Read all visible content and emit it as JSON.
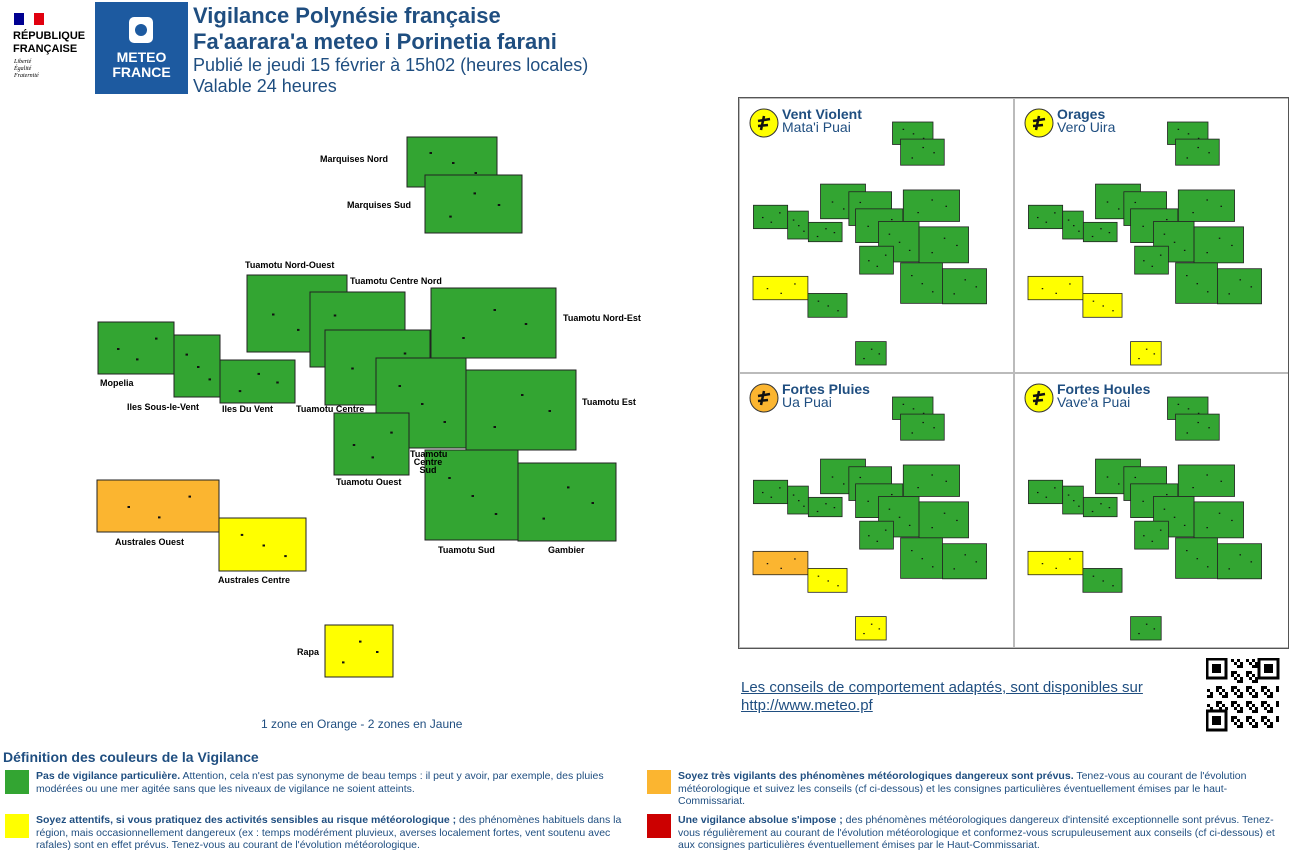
{
  "header": {
    "republic": [
      "RÉPUBLIQUE",
      "FRANÇAISE"
    ],
    "motto": [
      "Liberté",
      "Égalité",
      "Fraternité"
    ],
    "logo": [
      "METEO",
      "FRANCE"
    ],
    "title": [
      "Vigilance Polynésie française",
      "Fa'aarara'a meteo i Porinetia farani"
    ],
    "published": "Publié le jeudi 15 février à 15h02 (heures locales)",
    "validity": "Valable 24 heures"
  },
  "map": {
    "zones": [
      {
        "name": "Marquises Nord",
        "color": "#33a532"
      },
      {
        "name": "Marquises Sud",
        "color": "#33a532"
      },
      {
        "name": "Tuamotu Nord-Ouest",
        "color": "#33a532"
      },
      {
        "name": "Tuamotu Centre Nord",
        "color": "#33a532"
      },
      {
        "name": "Tuamotu Nord-Est",
        "color": "#33a532"
      },
      {
        "name": "Mopelia",
        "color": "#33a532"
      },
      {
        "name": "Iles Sous-le-Vent",
        "color": "#33a532"
      },
      {
        "name": "Iles Du Vent",
        "color": "#33a532"
      },
      {
        "name": "Tuamotu Centre",
        "color": "#33a532"
      },
      {
        "name": "Tuamotu Centre Sud",
        "color": "#33a532"
      },
      {
        "name": "Tuamotu Est",
        "color": "#33a532"
      },
      {
        "name": "Tuamotu Ouest",
        "color": "#33a532"
      },
      {
        "name": "Tuamotu Sud",
        "color": "#33a532"
      },
      {
        "name": "Gambier",
        "color": "#33a532"
      },
      {
        "name": "Australes Ouest",
        "color": "#fbb530"
      },
      {
        "name": "Australes Centre",
        "color": "#ffff00"
      },
      {
        "name": "Rapa",
        "color": "#ffff00"
      }
    ],
    "summary": "1 zone en Orange - 2 zones en Jaune"
  },
  "panels": [
    {
      "title": "Vent Violent",
      "subtitle": "Mata'i Puai",
      "icon_color": "#ffff00",
      "colors": [
        "#33a532",
        "#33a532",
        "#33a532",
        "#33a532",
        "#33a532",
        "#33a532",
        "#33a532",
        "#33a532",
        "#33a532",
        "#33a532",
        "#33a532",
        "#33a532",
        "#33a532",
        "#33a532",
        "#ffff00",
        "#33a532",
        "#33a532"
      ]
    },
    {
      "title": "Orages",
      "subtitle": "Vero Uira",
      "icon_color": "#ffff00",
      "colors": [
        "#33a532",
        "#33a532",
        "#33a532",
        "#33a532",
        "#33a532",
        "#33a532",
        "#33a532",
        "#33a532",
        "#33a532",
        "#33a532",
        "#33a532",
        "#33a532",
        "#33a532",
        "#33a532",
        "#ffff00",
        "#ffff00",
        "#ffff00"
      ]
    },
    {
      "title": "Fortes Pluies",
      "subtitle": "Ua Puai",
      "icon_color": "#fbb530",
      "colors": [
        "#33a532",
        "#33a532",
        "#33a532",
        "#33a532",
        "#33a532",
        "#33a532",
        "#33a532",
        "#33a532",
        "#33a532",
        "#33a532",
        "#33a532",
        "#33a532",
        "#33a532",
        "#33a532",
        "#fbb530",
        "#ffff00",
        "#ffff00"
      ]
    },
    {
      "title": "Fortes Houles",
      "subtitle": "Vave'a Puai",
      "icon_color": "#ffff00",
      "colors": [
        "#33a532",
        "#33a532",
        "#33a532",
        "#33a532",
        "#33a532",
        "#33a532",
        "#33a532",
        "#33a532",
        "#33a532",
        "#33a532",
        "#33a532",
        "#33a532",
        "#33a532",
        "#33a532",
        "#ffff00",
        "#33a532",
        "#33a532"
      ]
    }
  ],
  "advice": {
    "text": "Les conseils de comportement adaptés, sont disponibles sur",
    "link": "http://www.meteo.pf"
  },
  "legend": {
    "title": "Définition des couleurs de la Vigilance",
    "items": [
      {
        "color": "#33a532",
        "bold": "Pas de vigilance particulière.",
        "text": "Attention, cela n'est pas synonyme de beau temps : il peut y avoir, par exemple, des pluies modérées ou une mer agitée sans que les niveaux de vigilance ne soient atteints."
      },
      {
        "color": "#fbb530",
        "bold": "Soyez très vigilants des phénomènes météorologiques dangereux sont prévus.",
        "text": "Tenez-vous au courant de l'évolution météorologique et suivez les conseils (cf ci-dessous) et les consignes particulières éventuellement émises par le haut-Commissariat."
      },
      {
        "color": "#ffff00",
        "bold": "Soyez attentifs, si vous pratiquez des activités sensibles au risque météorologique ;",
        "text": "des phénomènes habituels dans la région, mais occasionnellement dangereux (ex : temps modérément pluvieux, averses localement fortes, vent soutenu avec rafales) sont en effet prévus. Tenez-vous au courant de l'évolution météorologique."
      },
      {
        "color": "#cc0000",
        "bold": "Une vigilance absolue s'impose ;",
        "text": "des phénomènes météorologiques dangereux d'intensité exceptionnelle sont prévus. Tenez-vous régulièrement au courant de l'évolution météorologique et conformez-vous scrupuleusement aux conseils (cf ci-dessous) et aux consignes particulières éventuellement émises par le Haut-Commissariat."
      }
    ]
  }
}
